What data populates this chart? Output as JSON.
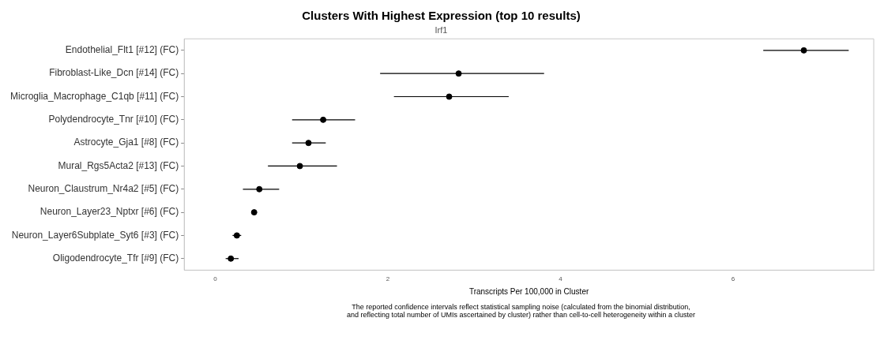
{
  "chart_data": {
    "type": "scatter",
    "orientation": "horizontal",
    "title": "Clusters With Highest Expression (top 10 results)",
    "subtitle": "Irf1",
    "xlabel": "Transcripts Per 100,000 in Cluster",
    "categories": [
      "Endothelial_Flt1 [#12] (FC)",
      "Fibroblast-Like_Dcn [#14] (FC)",
      "Microglia_Macrophage_C1qb [#11] (FC)",
      "Polydendrocyte_Tnr [#10] (FC)",
      "Astrocyte_Gja1 [#8] (FC)",
      "Mural_Rgs5Acta2 [#13] (FC)",
      "Neuron_Claustrum_Nr4a2 [#5] (FC)",
      "Neuron_Layer23_Nptxr [#6] (FC)",
      "Neuron_Layer6Subplate_Syt6 [#3] (FC)",
      "Oligodendrocyte_Tfr [#9] (FC)"
    ],
    "values": [
      6.82,
      2.82,
      2.71,
      1.25,
      1.08,
      0.98,
      0.51,
      0.45,
      0.25,
      0.18
    ],
    "errors": [
      [
        6.35,
        7.34
      ],
      [
        1.91,
        3.81
      ],
      [
        2.07,
        3.4
      ],
      [
        0.89,
        1.62
      ],
      [
        0.89,
        1.28
      ],
      [
        0.61,
        1.41
      ],
      [
        0.32,
        0.74
      ],
      null,
      [
        0.2,
        0.3
      ],
      [
        0.12,
        0.27
      ]
    ],
    "color": "#000000",
    "marker": "circle",
    "grid": false,
    "legend": false,
    "xlim": [
      -0.36,
      7.63
    ],
    "xticks": [
      0,
      2,
      4,
      6
    ],
    "annotations": [
      "The reported confidence intervals reflect statistical sampling noise (calculated from the binomial distribution,\nand reflecting total number of UMIs ascertained by cluster) rather than cell-to-cell heterogeneity within a cluster"
    ]
  }
}
